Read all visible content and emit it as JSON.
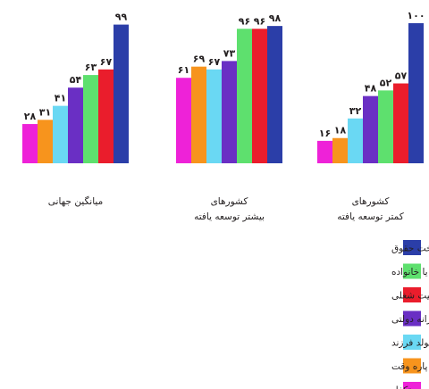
{
  "chart_data": {
    "type": "bar",
    "title": "",
    "xlabel": "",
    "ylabel": "",
    "ylim": [
      0,
      100
    ],
    "grid": false,
    "legend_placement": "bottom-right",
    "groups": [
      {
        "label_lines": [
          "کشورهای",
          "کمتر توسعه یافته"
        ],
        "values": [
          100,
          57,
          52,
          48,
          32,
          18,
          16
        ],
        "value_labels": [
          "۱۰۰",
          "۵۷",
          "۵۲",
          "۴۸",
          "۳۲",
          "۱۸",
          "۱۶"
        ]
      },
      {
        "label_lines": [
          "کشورهای",
          "بیشتر توسعه یافته"
        ],
        "values": [
          98,
          96,
          96,
          73,
          67,
          69,
          61
        ],
        "value_labels": [
          "۹۸",
          "۹۶",
          "۹۶",
          "۷۳",
          "۶۷",
          "۶۹",
          "۶۱"
        ]
      },
      {
        "label_lines": [
          "میانگین جهانی"
        ],
        "values": [
          99,
          67,
          63,
          54,
          41,
          31,
          28
        ],
        "value_labels": [
          "۹۹",
          "۶۷",
          "۶۳",
          "۵۴",
          "۴۱",
          "۳۱",
          "۲۸"
        ]
      }
    ],
    "series": [
      {
        "name": "مرخصی زایمان با امنیت شغلی - با یا بدون پرداخت حقوق",
        "color": "#2b3ea8"
      },
      {
        "name": "مرخصی پدری با امنیت شغلی",
        "color": "#ea1d2c"
      },
      {
        "name": "کمک هزینه کودک یا خانواده",
        "color": "#5ee06e"
      },
      {
        "name": "مراقبت از کودکان با یارانه دولتی",
        "color": "#6a2fc4"
      },
      {
        "name": "پاداش تولد فرزند",
        "color": "#6ad8f3"
      },
      {
        "name": "ساعات کاری شناور یا پاره وقت",
        "color": "#f7941d"
      },
      {
        "name": "تخفیف مالیاتی برای فرزندان تحت تکفل",
        "color": "#ee22d8"
      }
    ],
    "legend_order": [
      0,
      2,
      1,
      3,
      4,
      5,
      6
    ]
  }
}
